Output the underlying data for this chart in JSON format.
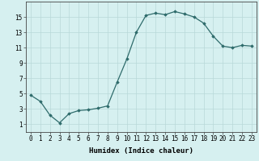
{
  "x": [
    0,
    1,
    2,
    3,
    4,
    5,
    6,
    7,
    8,
    9,
    10,
    11,
    12,
    13,
    14,
    15,
    16,
    17,
    18,
    19,
    20,
    21,
    22,
    23
  ],
  "y": [
    4.8,
    4.0,
    2.2,
    1.2,
    2.4,
    2.8,
    2.9,
    3.1,
    3.4,
    6.5,
    9.5,
    13.0,
    15.2,
    15.5,
    15.3,
    15.7,
    15.4,
    15.0,
    14.2,
    12.5,
    11.2,
    11.0,
    11.3,
    11.2
  ],
  "line_color": "#2e6b6b",
  "marker": "D",
  "marker_size": 1.8,
  "bg_color": "#d6f0f0",
  "grid_color": "#b8d8d8",
  "xlabel": "Humidex (Indice chaleur)",
  "ylabel": "",
  "xlim": [
    -0.5,
    23.5
  ],
  "ylim": [
    0,
    17
  ],
  "yticks": [
    1,
    3,
    5,
    7,
    9,
    11,
    13,
    15
  ],
  "xticks": [
    0,
    1,
    2,
    3,
    4,
    5,
    6,
    7,
    8,
    9,
    10,
    11,
    12,
    13,
    14,
    15,
    16,
    17,
    18,
    19,
    20,
    21,
    22,
    23
  ],
  "xtick_labels": [
    "0",
    "1",
    "2",
    "3",
    "4",
    "5",
    "6",
    "7",
    "8",
    "9",
    "10",
    "11",
    "12",
    "13",
    "14",
    "15",
    "16",
    "17",
    "18",
    "19",
    "20",
    "21",
    "22",
    "23"
  ],
  "xlabel_fontsize": 6.5,
  "tick_fontsize": 5.5
}
